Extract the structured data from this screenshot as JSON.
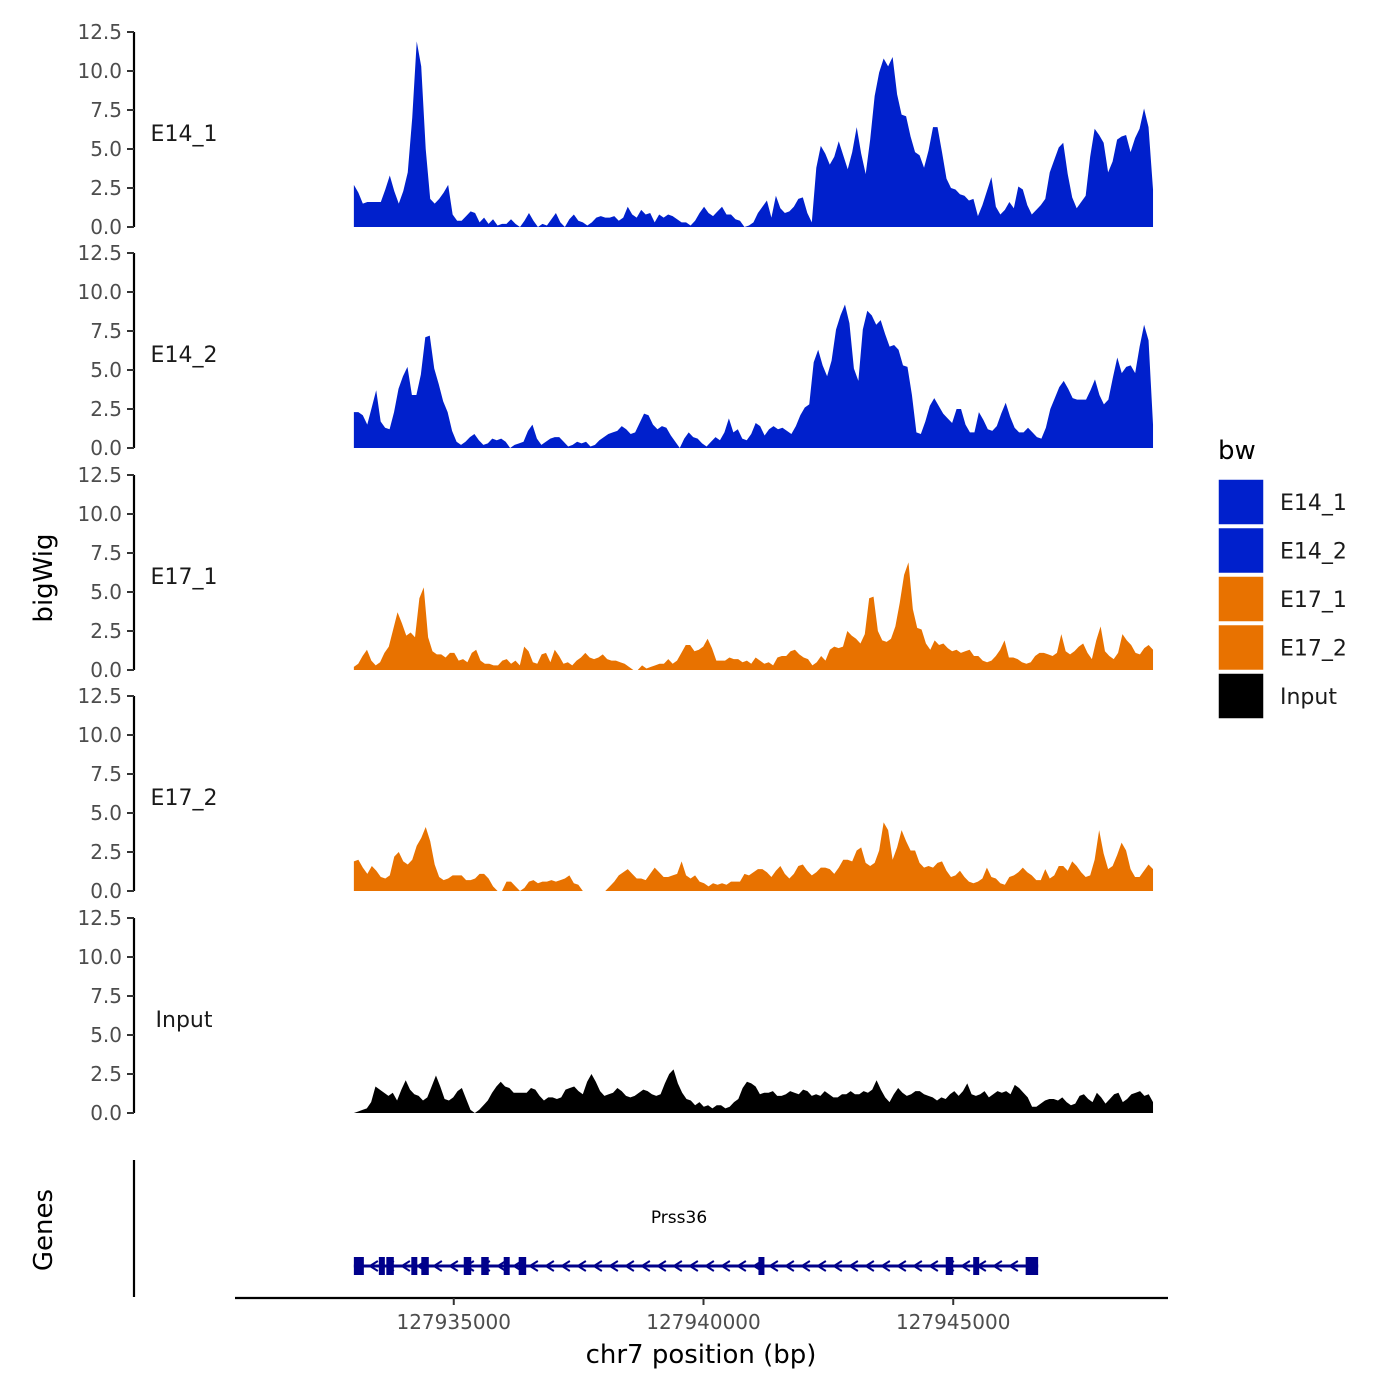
{
  "chart_data": {
    "type": "area",
    "title": "",
    "ylabel": "bigWig",
    "xlabel": "chr7 position (bp)",
    "genes_label": "Genes",
    "xlim": [
      127930620,
      127949300
    ],
    "ylim": [
      0,
      12.5
    ],
    "y_ticks": [
      "0.0",
      "2.5",
      "5.0",
      "7.5",
      "10.0",
      "12.5"
    ],
    "x_ticks": [
      {
        "value": 127935000,
        "label": "127935000"
      },
      {
        "value": 127940000,
        "label": "127940000"
      },
      {
        "value": 127945000,
        "label": "127945000"
      }
    ],
    "track_range": [
      127933000,
      127949000
    ],
    "legend": {
      "title": "bw",
      "entries": [
        {
          "label": "E14_1",
          "color": "#0020CC"
        },
        {
          "label": "E14_2",
          "color": "#0020CC"
        },
        {
          "label": "E17_1",
          "color": "#E87200"
        },
        {
          "label": "E17_2",
          "color": "#E87200"
        },
        {
          "label": "Input",
          "color": "#000000"
        }
      ]
    },
    "series": [
      {
        "name": "E14_1",
        "color": "#0020CC",
        "values": [
          2.7,
          2.2,
          1.5,
          1.6,
          1.6,
          1.6,
          1.6,
          2.4,
          3.3,
          2.3,
          1.5,
          2.3,
          3.5,
          7,
          11.9,
          10.3,
          5,
          1.8,
          1.5,
          1.8,
          2.2,
          2.7,
          0.8,
          0.4,
          0.4,
          0.7,
          1,
          0.9,
          0.3,
          0.6,
          0.2,
          0.5,
          0.1,
          0.2,
          0.2,
          0.5,
          0.2,
          0,
          0.4,
          0.9,
          0.4,
          0,
          0.2,
          0.1,
          0.5,
          0.9,
          0.3,
          0,
          0.5,
          0.8,
          0.4,
          0.3,
          0.1,
          0.3,
          0.6,
          0.7,
          0.6,
          0.6,
          0.7,
          0.4,
          0.6,
          1.3,
          0.8,
          0.6,
          1.1,
          0.8,
          0.9,
          0.3,
          0.8,
          0.6,
          0.8,
          0.7,
          0.5,
          0.3,
          0.3,
          0.1,
          0.4,
          0.9,
          1.3,
          0.9,
          0.7,
          1,
          1.3,
          0.8,
          0.8,
          0.5,
          0.4,
          0,
          0.1,
          0.3,
          0.9,
          1.3,
          1.7,
          0.6,
          2,
          1.2,
          0.9,
          1,
          1.3,
          1.8,
          1.9,
          0.9,
          0.3,
          3.8,
          5.2,
          4.7,
          4,
          4.5,
          5.5,
          4.6,
          3.7,
          4.8,
          6.4,
          4.7,
          3.4,
          5.6,
          8.4,
          9.9,
          10.8,
          10.3,
          10.9,
          8.5,
          7.2,
          7.1,
          5.8,
          4.8,
          4.6,
          3.8,
          4.9,
          6.4,
          6.4,
          4.8,
          3.1,
          2.5,
          2.4,
          2.1,
          2,
          1.7,
          1.8,
          0.7,
          1.4,
          2.3,
          3.2,
          1.3,
          0.8,
          1.1,
          1.6,
          1.2,
          2.6,
          2.4,
          1.4,
          0.8,
          1.1,
          1.4,
          1.8,
          3.5,
          4.3,
          5.1,
          5.4,
          3.4,
          1.9,
          1.2,
          1.6,
          2,
          4.5,
          6.3,
          5.9,
          5.4,
          3.5,
          4.2,
          5.6,
          5.8,
          5.9,
          4.8,
          5.7,
          6.3,
          7.6,
          6.4,
          2.4
        ]
      },
      {
        "name": "E14_2",
        "color": "#0020CC",
        "values": [
          2.3,
          2.3,
          2.1,
          1.5,
          2.6,
          3.7,
          1.7,
          1.3,
          1.2,
          2.3,
          3.8,
          4.6,
          5.2,
          3.4,
          3.4,
          4.7,
          7.1,
          7.2,
          5.1,
          4.1,
          3,
          2.3,
          1.1,
          0.4,
          0.2,
          0.4,
          0.7,
          0.9,
          0.5,
          0.2,
          0.3,
          0.6,
          0.5,
          0.6,
          0.4,
          0,
          0.2,
          0.3,
          0.4,
          1.1,
          1.5,
          0.6,
          0.2,
          0.4,
          0.6,
          0.7,
          0.7,
          0.4,
          0.1,
          0.2,
          0.4,
          0.3,
          0.4,
          0.1,
          0.2,
          0.5,
          0.7,
          0.9,
          1,
          1.1,
          1.4,
          1.2,
          0.9,
          1,
          1.6,
          2.2,
          2.1,
          1.5,
          1.2,
          1.4,
          1.3,
          0.8,
          0.4,
          0,
          0.6,
          1,
          0.7,
          0.6,
          0.3,
          0.1,
          0.4,
          0.7,
          0.5,
          1,
          1.9,
          1,
          1.2,
          0.6,
          0.5,
          0.9,
          1.6,
          1.4,
          0.8,
          1.2,
          1.4,
          1.2,
          1.3,
          1.1,
          0.9,
          1.4,
          2.1,
          2.6,
          2.8,
          5.5,
          6.3,
          5.3,
          4.6,
          5.6,
          7.6,
          8.5,
          9.2,
          8,
          5.1,
          4.3,
          7.6,
          8.8,
          8.5,
          7.9,
          8.2,
          7.3,
          6.5,
          6.6,
          6.3,
          5.3,
          5.2,
          3.4,
          1,
          0.9,
          1.7,
          2.7,
          3.2,
          2.7,
          2.2,
          1.9,
          1.6,
          2.5,
          2.5,
          1.5,
          1,
          1,
          2.3,
          1.8,
          1.2,
          1.1,
          1.4,
          2.2,
          2.9,
          2,
          1.3,
          1,
          1,
          1.3,
          1,
          0.7,
          0.6,
          1.3,
          2.5,
          3.2,
          3.9,
          4.3,
          3.8,
          3.2,
          3.1,
          3.1,
          3.1,
          3.7,
          4.4,
          3.4,
          2.8,
          3.1,
          4.5,
          5.8,
          4.8,
          5.2,
          5.3,
          4.8,
          6.5,
          7.9,
          6.9,
          1.5
        ]
      },
      {
        "name": "E17_1",
        "color": "#E87200",
        "values": [
          0.2,
          0.4,
          0.9,
          1.3,
          0.6,
          0.3,
          0.5,
          1.1,
          1.5,
          2.6,
          3.7,
          3,
          2.2,
          2.4,
          2.1,
          4.6,
          5.3,
          2.1,
          1.2,
          1,
          1,
          0.8,
          1.1,
          1.1,
          0.6,
          0.7,
          0.5,
          1.1,
          1.3,
          0.6,
          0.4,
          0.4,
          0.3,
          0.3,
          0.6,
          0.7,
          0.4,
          0.6,
          0.3,
          1.5,
          1.2,
          0.5,
          0.4,
          1,
          1.1,
          0.5,
          1.3,
          0.9,
          0.4,
          0.5,
          0.3,
          0.6,
          0.8,
          1.1,
          0.8,
          0.7,
          0.8,
          1,
          0.7,
          0.6,
          0.6,
          0.5,
          0.4,
          0.2,
          0,
          0,
          0.3,
          0.1,
          0.2,
          0.3,
          0.4,
          0.4,
          0.7,
          0.4,
          0.6,
          1.1,
          1.6,
          1.6,
          1.2,
          1.3,
          1.5,
          2,
          1.4,
          0.6,
          0.6,
          0.6,
          0.8,
          0.7,
          0.7,
          0.5,
          0.6,
          0.4,
          0.8,
          0.6,
          0.4,
          0.5,
          0.3,
          0.8,
          0.9,
          0.9,
          1.2,
          1.3,
          1,
          0.8,
          0.7,
          0.3,
          0.5,
          0.9,
          0.6,
          1.3,
          1.5,
          1.4,
          1.5,
          2.5,
          2.2,
          2,
          1.7,
          2.3,
          4.6,
          4.7,
          2.5,
          1.9,
          1.8,
          2,
          2.8,
          4.3,
          6.1,
          6.9,
          3.9,
          2.7,
          2.6,
          1.7,
          1.3,
          1.9,
          1.6,
          1.7,
          1.4,
          1.2,
          1.3,
          1.1,
          1.2,
          1.3,
          0.9,
          0.9,
          0.6,
          0.5,
          0.6,
          0.9,
          1.3,
          1.9,
          0.8,
          0.8,
          0.7,
          0.5,
          0.4,
          0.5,
          0.9,
          1.1,
          1.1,
          1,
          0.9,
          1.1,
          2.3,
          1.2,
          1,
          1.2,
          1.5,
          1.7,
          1.1,
          0.7,
          1.9,
          2.8,
          1.2,
          0.9,
          0.7,
          1.1,
          2.3,
          1.9,
          1.6,
          1.1,
          1,
          1.4,
          1.6,
          1.3
        ]
      },
      {
        "name": "E17_2",
        "color": "#E87200",
        "values": [
          1.9,
          2,
          1.5,
          1.1,
          1.6,
          1.3,
          0.9,
          0.8,
          1,
          2.2,
          2.5,
          1.9,
          1.7,
          2,
          2.9,
          3.4,
          4.1,
          3.2,
          1.7,
          0.9,
          0.7,
          0.8,
          1,
          1,
          1,
          0.7,
          0.7,
          0.8,
          1.1,
          1.1,
          0.8,
          0.3,
          0,
          0,
          0.6,
          0.6,
          0.3,
          0,
          0.2,
          0.6,
          0.7,
          0.5,
          0.6,
          0.6,
          0.7,
          0.6,
          0.7,
          0.8,
          1,
          0.5,
          0.4,
          0,
          0,
          0,
          0,
          0,
          0,
          0.3,
          0.6,
          1,
          1.2,
          1.4,
          1.1,
          0.8,
          0.8,
          0.7,
          1.1,
          1.5,
          1.2,
          0.9,
          0.9,
          1,
          1.1,
          1.9,
          1,
          0.8,
          1,
          0.6,
          0.5,
          0.3,
          0.5,
          0.4,
          0.5,
          0.4,
          0.6,
          0.6,
          0.6,
          1.1,
          1,
          1.2,
          1.4,
          1.4,
          1.2,
          0.9,
          1.3,
          1.6,
          1.1,
          0.8,
          1.1,
          1.6,
          1.7,
          1.3,
          1,
          1.2,
          1.5,
          1.5,
          1.4,
          1.1,
          1.5,
          2,
          2,
          1.9,
          2.6,
          2.8,
          1.8,
          1.6,
          1.8,
          2.6,
          4.4,
          3.9,
          2,
          2.8,
          3.9,
          3.2,
          2.6,
          2.6,
          1.8,
          1.5,
          1.6,
          1.5,
          1.8,
          1.9,
          1.3,
          0.9,
          1,
          1.3,
          0.9,
          0.6,
          0.5,
          0.6,
          0.8,
          1.5,
          0.9,
          0.8,
          0.5,
          0.4,
          0.9,
          1,
          1.2,
          1.5,
          1.2,
          1,
          0.7,
          0.7,
          1.4,
          0.8,
          1,
          1.6,
          1.6,
          1.3,
          1.9,
          1.6,
          1.2,
          0.9,
          1,
          2,
          3.9,
          2.4,
          1.4,
          1.6,
          2.3,
          3.1,
          2.6,
          1.4,
          0.9,
          0.9,
          1.3,
          1.7,
          1.4
        ]
      },
      {
        "name": "Input",
        "color": "#000000",
        "values": [
          0,
          0.1,
          0.2,
          0.3,
          0.7,
          1.7,
          1.5,
          1.3,
          1.1,
          1.3,
          0.8,
          1.5,
          2.1,
          1.5,
          1.2,
          1.1,
          0.8,
          1,
          1.7,
          2.4,
          1.7,
          0.9,
          0.8,
          1,
          1.4,
          1.6,
          0.9,
          0.2,
          0,
          0.2,
          0.5,
          0.8,
          1.3,
          1.7,
          2,
          1.7,
          1.6,
          1.3,
          1.3,
          1.3,
          1.3,
          1.6,
          1.5,
          1.1,
          0.8,
          1,
          1,
          0.9,
          1,
          1.5,
          1.6,
          1.7,
          1.4,
          1.2,
          2,
          2.5,
          2,
          1.4,
          1.1,
          1.2,
          1.3,
          1.6,
          1.4,
          1.1,
          1,
          1.1,
          1.3,
          1.5,
          1.4,
          1.2,
          1.1,
          1.2,
          1.9,
          2.5,
          2.8,
          1.9,
          1.3,
          0.9,
          0.8,
          0.5,
          0.7,
          0.4,
          0.5,
          0.3,
          0.5,
          0.5,
          0.3,
          0.4,
          0.7,
          0.9,
          1.6,
          2,
          1.9,
          1.7,
          1.2,
          1.3,
          1.3,
          1.4,
          1.1,
          1.1,
          1.2,
          1.4,
          1.3,
          1.2,
          1.5,
          1.4,
          1.1,
          1.2,
          1.1,
          1.4,
          1.2,
          1,
          1,
          1.2,
          1.2,
          1.4,
          1.2,
          1.2,
          1.4,
          1.3,
          1.5,
          2.1,
          1.5,
          1,
          0.7,
          1.2,
          1.6,
          1.3,
          1.1,
          1.2,
          1.4,
          1.4,
          1.2,
          1.1,
          1,
          0.8,
          1,
          0.9,
          1.2,
          1.4,
          1.1,
          1.4,
          1.9,
          1.2,
          1.1,
          1.2,
          1.4,
          1,
          1.2,
          1.4,
          1.3,
          1.4,
          1.2,
          1.8,
          1.6,
          1.3,
          1,
          0.4,
          0.4,
          0.6,
          0.8,
          0.9,
          0.9,
          0.8,
          1,
          0.7,
          0.5,
          0.6,
          1.1,
          1.2,
          0.9,
          0.7,
          1.3,
          1,
          0.6,
          0.9,
          1.2,
          1.3,
          0.7,
          0.9,
          1.2,
          1.3,
          1.4,
          1.1,
          1.2,
          0.7
        ]
      }
    ],
    "genes": [
      {
        "name": "Prss36",
        "strand": "-",
        "start": 127933000,
        "end": 127946700,
        "color": "#00008B",
        "exons": [
          [
            127933000,
            127933200
          ],
          [
            127933500,
            127933550
          ],
          [
            127933650,
            127933800
          ],
          [
            127934150,
            127934250
          ],
          [
            127934350,
            127934500
          ],
          [
            127935200,
            127935350
          ],
          [
            127935550,
            127935700
          ],
          [
            127936000,
            127936080
          ],
          [
            127936300,
            127936450
          ],
          [
            127941100,
            127941200
          ],
          [
            127944850,
            127945000
          ],
          [
            127945400,
            127945500
          ],
          [
            127946450,
            127946700
          ]
        ]
      }
    ]
  }
}
